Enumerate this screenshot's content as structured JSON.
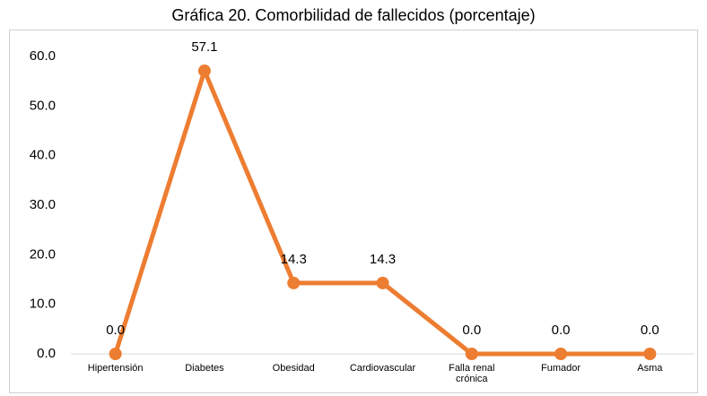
{
  "chart_data": {
    "type": "line",
    "title": "Gráfica 20. Comorbilidad de fallecidos (porcentaje)",
    "categories": [
      "Hipertensión",
      "Diabetes",
      "Obesidad",
      "Cardiovascular",
      "Falla renal\ncrónica",
      "Fumador",
      "Asma"
    ],
    "series": [
      {
        "name": "Comorbilidad",
        "color": "#ed7d31",
        "values": [
          0,
          57.1,
          14.3,
          14.3,
          0,
          0,
          0
        ],
        "value_labels": [
          "0.0",
          "57.1",
          "14.3",
          "14.3",
          "0.0",
          "0.0",
          "0.0"
        ]
      }
    ],
    "ylim": [
      0,
      60
    ],
    "yticks": [
      {
        "value": 0,
        "label": "0.0"
      },
      {
        "value": 10,
        "label": "10.0"
      },
      {
        "value": 20,
        "label": "20.0"
      },
      {
        "value": 30,
        "label": "30.0"
      },
      {
        "value": 40,
        "label": "40.0"
      },
      {
        "value": 50,
        "label": "50.0"
      },
      {
        "value": 60,
        "label": "60.0"
      }
    ],
    "grid": false
  }
}
